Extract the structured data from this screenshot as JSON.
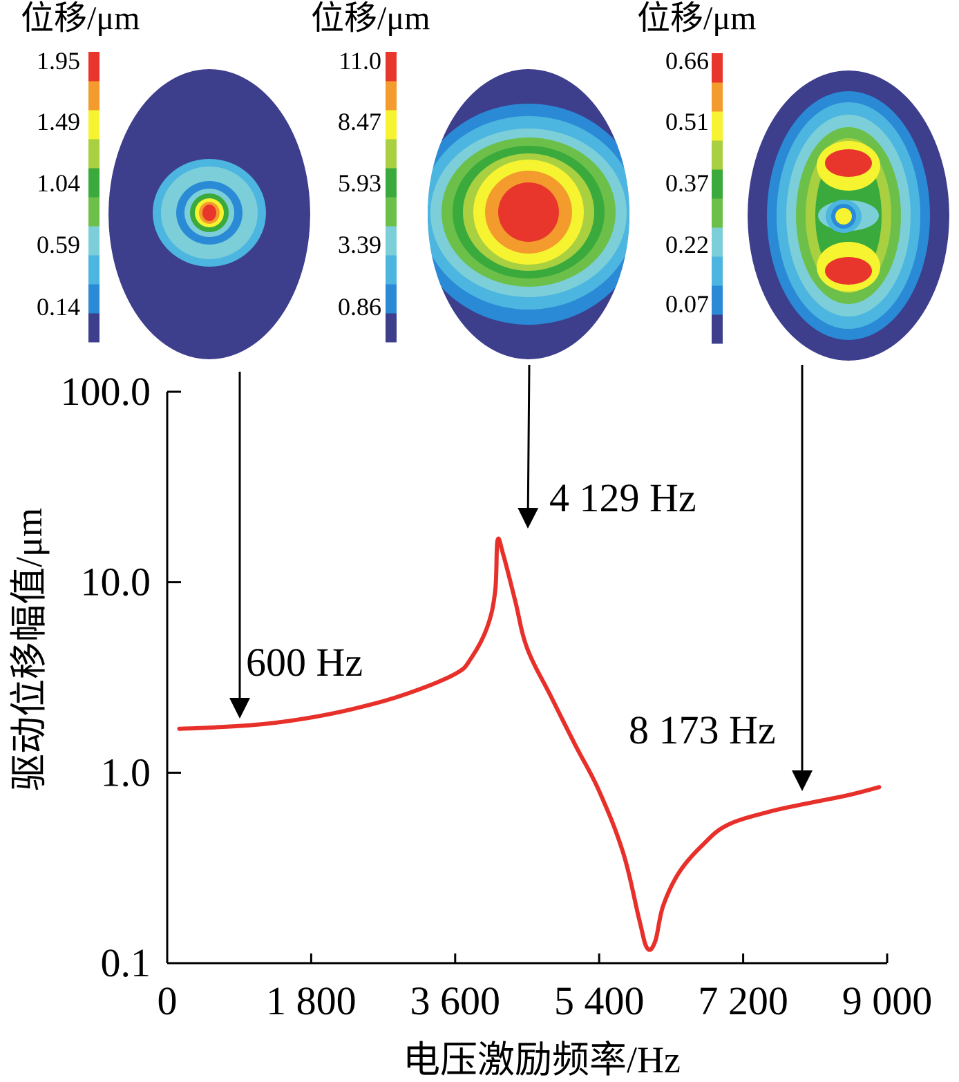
{
  "palette": [
    "#3d3e8c",
    "#2a8ad6",
    "#4cb6e0",
    "#7ccfd8",
    "#6cc04a",
    "#3aaa3c",
    "#a8d040",
    "#f6f430",
    "#f39b2c",
    "#e8362c"
  ],
  "curve_color": "#e8302a",
  "contours": [
    {
      "title": "位移/μm",
      "ticks": [
        "1.95",
        "1.49",
        "1.04",
        "0.59",
        "0.14"
      ],
      "mode": "600 Hz"
    },
    {
      "title": "位移/μm",
      "ticks": [
        "11.0",
        "8.47",
        "5.93",
        "3.39",
        "0.86"
      ],
      "mode": "4 129 Hz"
    },
    {
      "title": "位移/μm",
      "ticks": [
        "0.66",
        "0.51",
        "0.37",
        "0.22",
        "0.07"
      ],
      "mode": "8 173 Hz"
    }
  ],
  "chart_data": {
    "type": "line",
    "xlabel": "电压激励频率/Hz",
    "ylabel": "驱动位移幅值/μm",
    "yscale": "log",
    "xlim": [
      0,
      9000
    ],
    "ylim": [
      0.1,
      100
    ],
    "x_ticks": [
      0,
      1800,
      3600,
      5400,
      7200,
      9000
    ],
    "x_tick_labels": [
      "0",
      "1 800",
      "3 600",
      "5 400",
      "7 200",
      "9 000"
    ],
    "y_ticks": [
      0.1,
      1,
      10,
      100
    ],
    "y_tick_labels": [
      "0.1",
      "1.0",
      "10.0",
      "100.0"
    ],
    "series": [
      {
        "x": [
          150,
          600,
          1200,
          1800,
          2400,
          3000,
          3600,
          3800,
          4000,
          4100,
          4129,
          4200,
          4350,
          4500,
          4800,
          5100,
          5400,
          5700,
          5900,
          6000,
          6100,
          6200,
          6400,
          6700,
          7000,
          7500,
          8000,
          8500,
          8900
        ],
        "y": [
          1.7,
          1.73,
          1.8,
          1.95,
          2.2,
          2.6,
          3.3,
          4.0,
          5.8,
          9.0,
          16.5,
          14.0,
          8.0,
          4.5,
          2.5,
          1.4,
          0.8,
          0.38,
          0.17,
          0.12,
          0.13,
          0.2,
          0.3,
          0.42,
          0.53,
          0.62,
          0.69,
          0.76,
          0.84
        ]
      }
    ],
    "annotations": [
      {
        "text": "600 Hz",
        "x": 600,
        "y": 1.73
      },
      {
        "text": "4 129 Hz",
        "x": 4129,
        "y": 16.5
      },
      {
        "text": "8 173 Hz",
        "x": 8173,
        "y": 0.72
      }
    ]
  }
}
